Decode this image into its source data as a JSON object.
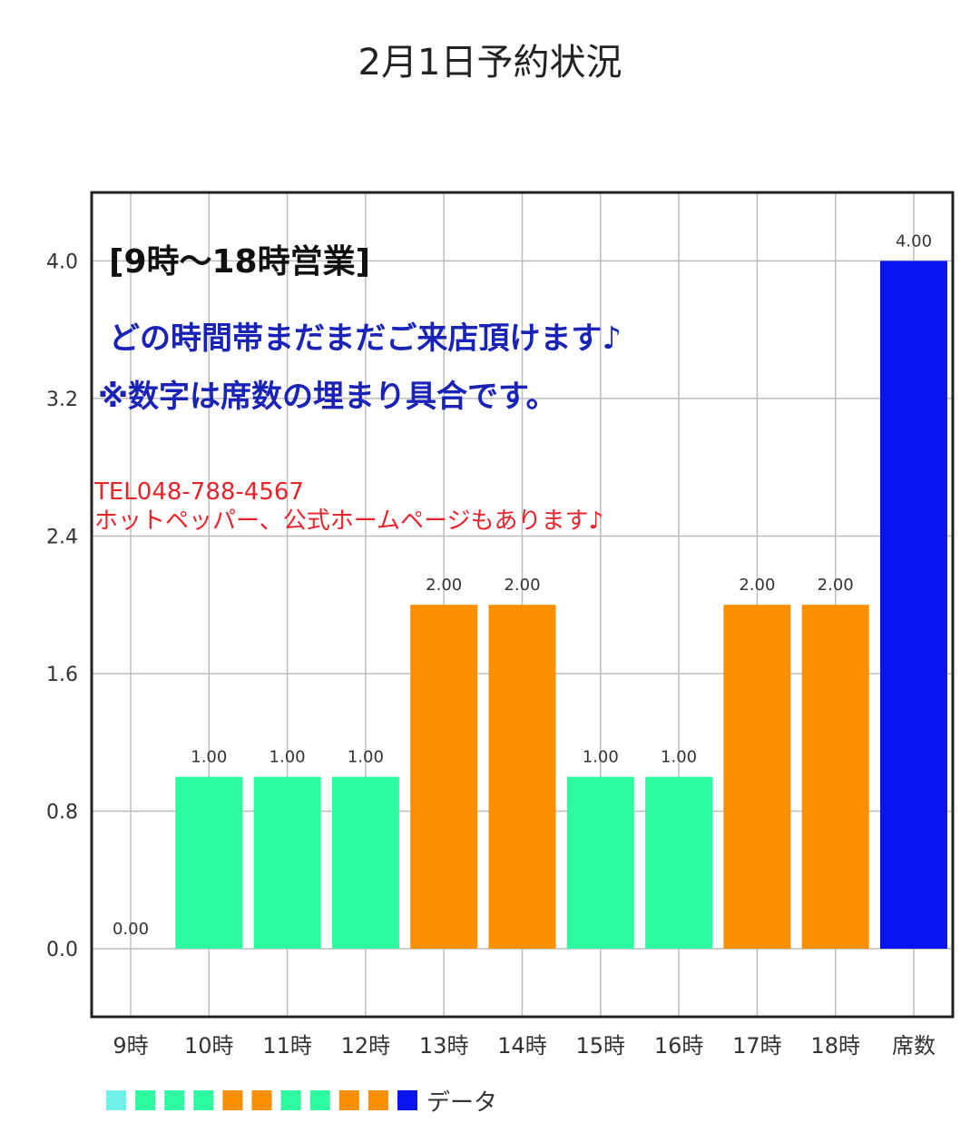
{
  "chart_data": {
    "type": "bar",
    "title": "2月1日予約状況",
    "categories": [
      "9時",
      "10時",
      "11時",
      "12時",
      "13時",
      "14時",
      "15時",
      "16時",
      "17時",
      "18時",
      "席数"
    ],
    "values": [
      0,
      1,
      1,
      1,
      2,
      2,
      1,
      1,
      2,
      2,
      4
    ],
    "value_labels": [
      "0.00",
      "1.00",
      "1.00",
      "1.00",
      "2.00",
      "2.00",
      "1.00",
      "1.00",
      "2.00",
      "2.00",
      "4.00"
    ],
    "bar_colors": [
      "#6ff0e8",
      "#2efca0",
      "#2efca0",
      "#2efca0",
      "#fa9000",
      "#fa9000",
      "#2efca0",
      "#2efca0",
      "#fa9000",
      "#fa9000",
      "#0a14f0"
    ],
    "y_ticks": [
      "4.0",
      "3.2",
      "2.4",
      "1.6",
      "0.8",
      "0.0"
    ],
    "y_tick_values": [
      4.0,
      3.2,
      2.4,
      1.6,
      0.8,
      0.0
    ],
    "ylim": [
      -0.4,
      4.4
    ],
    "grid": true,
    "legend": {
      "position": "bottom-left",
      "label": "データ"
    },
    "series": [
      {
        "name": "データ",
        "values": [
          0,
          1,
          1,
          1,
          2,
          2,
          1,
          1,
          2,
          2,
          4
        ]
      }
    ]
  },
  "annotations": {
    "hours": "[9時〜18時営業]",
    "welcome": "どの時間帯まだまだご来店頂けます♪",
    "note": "※数字は席数の埋まり具合です。",
    "tel": "TEL048-788-4567",
    "web": "ホットペッパー、公式ホームページもあります♪"
  },
  "colors": {
    "green": "#2efca0",
    "orange": "#fa9000",
    "blue": "#0a14f0",
    "cyan": "#6ff0e8",
    "note_blue": "#1a23b8",
    "note_red": "#e8232a"
  }
}
